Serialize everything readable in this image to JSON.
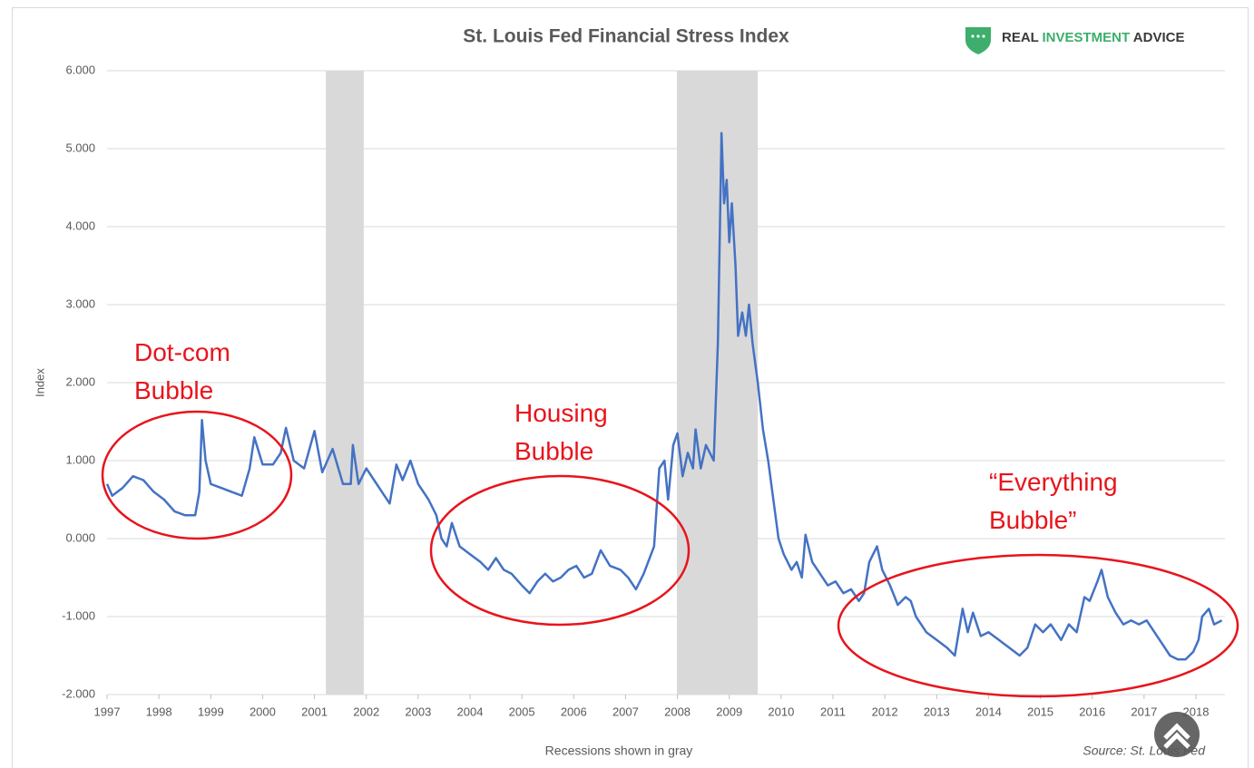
{
  "chart_data": {
    "type": "line",
    "title": "St. Louis Fed Financial Stress Index",
    "brand": [
      "REAL",
      "INVESTMENT",
      "ADVICE"
    ],
    "y_label": "Index",
    "x_note": "Recessions shown in gray",
    "source": "Source: St. Louis Fed",
    "annotations": [
      [
        "Dot-com",
        "Bubble"
      ],
      [
        "Housing",
        "Bubble"
      ],
      [
        "“Everything",
        "Bubble”"
      ]
    ],
    "color": "#4472c4",
    "recession_color": "#d9d9d9",
    "recessions": [
      [
        2001.22,
        2001.95
      ],
      [
        2007.99,
        2009.55
      ]
    ],
    "xlim": [
      1997,
      2018.56
    ],
    "xticks": [
      1997,
      1998,
      1999,
      2000,
      2001,
      2002,
      2003,
      2004,
      2005,
      2006,
      2007,
      2008,
      2009,
      2010,
      2011,
      2012,
      2013,
      2014,
      2015,
      2016,
      2017,
      2018
    ],
    "ylim": [
      -2,
      6
    ],
    "yticks": [
      {
        "value": -2,
        "label": "-2.000"
      },
      {
        "value": -1,
        "label": "-1.000"
      },
      {
        "value": 0,
        "label": "0.000"
      },
      {
        "value": 1,
        "label": "1.000"
      },
      {
        "value": 2,
        "label": "2.000"
      },
      {
        "value": 3,
        "label": "3.000"
      },
      {
        "value": 4,
        "label": "4.000"
      },
      {
        "value": 5,
        "label": "5.000"
      },
      {
        "value": 6,
        "label": "6.000"
      }
    ],
    "grid": true,
    "x": [
      1997.0,
      1997.1,
      1997.3,
      1997.5,
      1997.7,
      1997.9,
      1998.1,
      1998.3,
      1998.5,
      1998.7,
      1998.78,
      1998.83,
      1998.9,
      1999.0,
      1999.2,
      1999.4,
      1999.6,
      1999.75,
      1999.84,
      2000.0,
      2000.2,
      2000.35,
      2000.45,
      2000.6,
      2000.8,
      2001.0,
      2001.15,
      2001.35,
      2001.55,
      2001.7,
      2001.74,
      2001.85,
      2002.0,
      2002.15,
      2002.3,
      2002.45,
      2002.58,
      2002.7,
      2002.85,
      2003.0,
      2003.2,
      2003.35,
      2003.45,
      2003.55,
      2003.65,
      2003.8,
      2004.0,
      2004.2,
      2004.35,
      2004.5,
      2004.65,
      2004.8,
      2005.0,
      2005.15,
      2005.3,
      2005.45,
      2005.6,
      2005.75,
      2005.9,
      2006.05,
      2006.2,
      2006.35,
      2006.52,
      2006.7,
      2006.9,
      2007.05,
      2007.2,
      2007.35,
      2007.55,
      2007.65,
      2007.75,
      2007.82,
      2007.92,
      2008.0,
      2008.1,
      2008.2,
      2008.3,
      2008.35,
      2008.45,
      2008.55,
      2008.7,
      2008.78,
      2008.82,
      2008.85,
      2008.9,
      2008.95,
      2009.0,
      2009.05,
      2009.12,
      2009.17,
      2009.25,
      2009.32,
      2009.38,
      2009.45,
      2009.55,
      2009.65,
      2009.75,
      2009.85,
      2009.95,
      2010.05,
      2010.2,
      2010.3,
      2010.4,
      2010.47,
      2010.6,
      2010.75,
      2010.9,
      2011.05,
      2011.2,
      2011.35,
      2011.5,
      2011.6,
      2011.7,
      2011.85,
      2011.95,
      2012.1,
      2012.25,
      2012.4,
      2012.5,
      2012.6,
      2012.8,
      2013.0,
      2013.2,
      2013.35,
      2013.5,
      2013.6,
      2013.7,
      2013.85,
      2014.0,
      2014.2,
      2014.4,
      2014.6,
      2014.75,
      2014.9,
      2015.05,
      2015.2,
      2015.4,
      2015.55,
      2015.7,
      2015.85,
      2015.95,
      2016.1,
      2016.18,
      2016.3,
      2016.45,
      2016.6,
      2016.75,
      2016.9,
      2017.05,
      2017.2,
      2017.35,
      2017.5,
      2017.65,
      2017.8,
      2017.95,
      2018.05,
      2018.12,
      2018.25,
      2018.35,
      2018.5
    ],
    "values": [
      0.7,
      0.55,
      0.65,
      0.8,
      0.75,
      0.6,
      0.5,
      0.35,
      0.3,
      0.3,
      0.6,
      1.52,
      1.0,
      0.7,
      0.65,
      0.6,
      0.55,
      0.9,
      1.3,
      0.95,
      0.95,
      1.1,
      1.42,
      1.0,
      0.9,
      1.38,
      0.85,
      1.15,
      0.7,
      0.7,
      1.2,
      0.7,
      0.9,
      0.75,
      0.6,
      0.45,
      0.95,
      0.75,
      1.0,
      0.7,
      0.5,
      0.3,
      0.0,
      -0.1,
      0.2,
      -0.1,
      -0.2,
      -0.3,
      -0.4,
      -0.25,
      -0.4,
      -0.45,
      -0.6,
      -0.7,
      -0.55,
      -0.45,
      -0.55,
      -0.5,
      -0.4,
      -0.35,
      -0.5,
      -0.45,
      -0.15,
      -0.35,
      -0.4,
      -0.5,
      -0.65,
      -0.45,
      -0.1,
      0.9,
      1.0,
      0.5,
      1.2,
      1.35,
      0.8,
      1.1,
      0.9,
      1.4,
      0.9,
      1.2,
      1.0,
      2.5,
      4.0,
      5.2,
      4.3,
      4.6,
      3.8,
      4.3,
      3.5,
      2.6,
      2.9,
      2.6,
      3.0,
      2.5,
      2.0,
      1.4,
      1.0,
      0.5,
      0.0,
      -0.2,
      -0.4,
      -0.3,
      -0.5,
      0.05,
      -0.3,
      -0.45,
      -0.6,
      -0.55,
      -0.7,
      -0.65,
      -0.8,
      -0.7,
      -0.3,
      -0.1,
      -0.4,
      -0.6,
      -0.85,
      -0.75,
      -0.8,
      -1.0,
      -1.2,
      -1.3,
      -1.4,
      -1.5,
      -0.9,
      -1.2,
      -0.95,
      -1.25,
      -1.2,
      -1.3,
      -1.4,
      -1.5,
      -1.4,
      -1.1,
      -1.2,
      -1.1,
      -1.3,
      -1.1,
      -1.2,
      -0.75,
      -0.8,
      -0.55,
      -0.4,
      -0.75,
      -0.95,
      -1.1,
      -1.05,
      -1.1,
      -1.05,
      -1.2,
      -1.35,
      -1.5,
      -1.55,
      -1.55,
      -1.45,
      -1.3,
      -1.0,
      -0.9,
      -1.1,
      -1.05
    ]
  }
}
